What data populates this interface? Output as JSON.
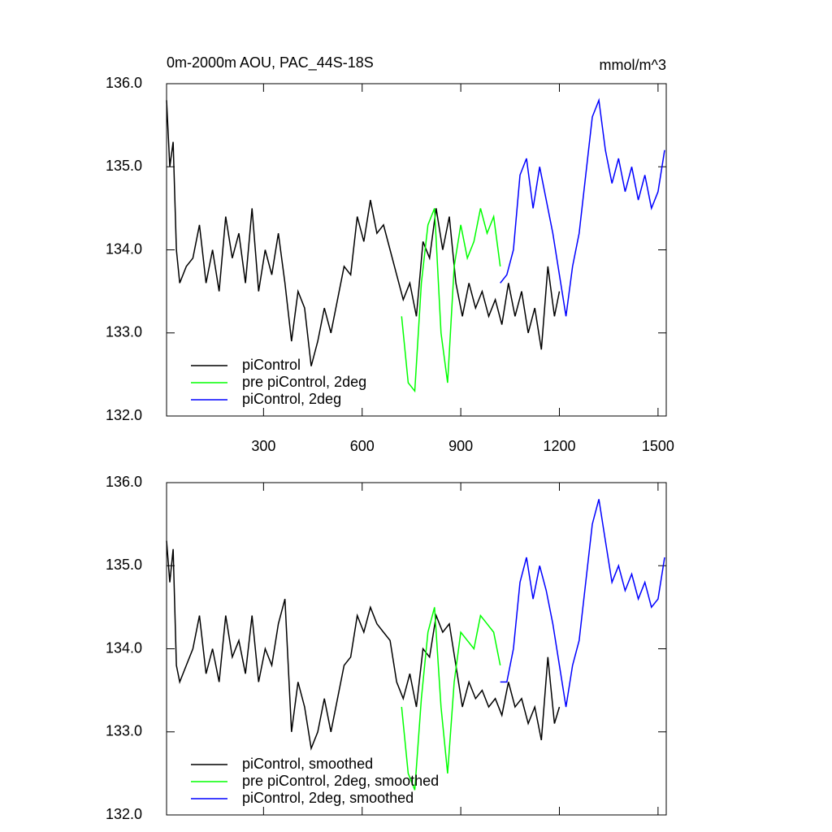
{
  "chart_data": [
    {
      "type": "line",
      "title": "0m-2000m AOU, PAC_44S-18S",
      "units": "mmol/m^3",
      "xlim": [
        5,
        1525
      ],
      "xticks": [
        300,
        600,
        900,
        1200,
        1500
      ],
      "xtick_labels": true,
      "ylim": [
        132,
        136
      ],
      "yticks": [
        {
          "value": 132,
          "label": "132.0"
        },
        {
          "value": 133,
          "label": "133.0"
        },
        {
          "value": 134,
          "label": "134.0"
        },
        {
          "value": 135,
          "label": "135.0"
        },
        {
          "value": 136,
          "label": "136.0"
        }
      ],
      "legend": "lower left",
      "series": [
        {
          "name": "piControl",
          "color": "#000000",
          "x": [
            5,
            15,
            25,
            35,
            45,
            65,
            85,
            105,
            125,
            145,
            165,
            185,
            205,
            225,
            245,
            265,
            285,
            305,
            325,
            345,
            365,
            385,
            405,
            425,
            445,
            465,
            485,
            505,
            525,
            545,
            565,
            585,
            605,
            625,
            645,
            665,
            685,
            705,
            725,
            745,
            765,
            785,
            805,
            825,
            845,
            865,
            885,
            905,
            925,
            945,
            965,
            985,
            1005,
            1025,
            1045,
            1065,
            1085,
            1105,
            1125,
            1145,
            1165,
            1185,
            1200
          ],
          "values": [
            135.8,
            135.0,
            135.3,
            134.0,
            133.6,
            133.8,
            133.9,
            134.3,
            133.6,
            134.0,
            133.5,
            134.4,
            133.9,
            134.2,
            133.6,
            134.5,
            133.5,
            134.0,
            133.7,
            134.2,
            133.6,
            132.9,
            133.5,
            133.3,
            132.6,
            132.9,
            133.3,
            133.0,
            133.4,
            133.8,
            133.7,
            134.4,
            134.1,
            134.6,
            134.2,
            134.3,
            134.0,
            133.7,
            133.4,
            133.6,
            133.2,
            134.1,
            133.9,
            134.5,
            134.0,
            134.4,
            133.6,
            133.2,
            133.6,
            133.3,
            133.5,
            133.2,
            133.4,
            133.1,
            133.6,
            133.2,
            133.5,
            133.0,
            133.3,
            132.8,
            133.8,
            133.2,
            133.5
          ]
        },
        {
          "name": "pre piControl, 2deg",
          "color": "#00ff00",
          "x": [
            720,
            740,
            760,
            780,
            800,
            820,
            840,
            860,
            880,
            900,
            920,
            940,
            960,
            980,
            1000,
            1020
          ],
          "values": [
            133.2,
            132.4,
            132.3,
            133.6,
            134.3,
            134.5,
            133.0,
            132.4,
            133.8,
            134.3,
            133.9,
            134.1,
            134.5,
            134.2,
            134.4,
            133.8
          ]
        },
        {
          "name": "piControl, 2deg",
          "color": "#0000ff",
          "x": [
            1020,
            1040,
            1060,
            1080,
            1100,
            1120,
            1140,
            1160,
            1180,
            1200,
            1220,
            1240,
            1260,
            1280,
            1300,
            1320,
            1340,
            1360,
            1380,
            1400,
            1420,
            1440,
            1460,
            1480,
            1500,
            1520
          ],
          "values": [
            133.6,
            133.7,
            134.0,
            134.9,
            135.1,
            134.5,
            135.0,
            134.6,
            134.2,
            133.7,
            133.2,
            133.8,
            134.2,
            134.9,
            135.6,
            135.8,
            135.2,
            134.8,
            135.1,
            134.7,
            135.0,
            134.6,
            134.9,
            134.5,
            134.7,
            135.2
          ]
        }
      ]
    },
    {
      "type": "line",
      "xlim": [
        5,
        1525
      ],
      "xticks": [
        300,
        600,
        900,
        1200,
        1500
      ],
      "xtick_labels": false,
      "ylim": [
        132,
        136
      ],
      "yticks": [
        {
          "value": 132,
          "label": "132.0"
        },
        {
          "value": 133,
          "label": "133.0"
        },
        {
          "value": 134,
          "label": "134.0"
        },
        {
          "value": 135,
          "label": "135.0"
        },
        {
          "value": 136,
          "label": "136.0"
        }
      ],
      "legend": "lower left",
      "series": [
        {
          "name": "piControl, smoothed",
          "color": "#000000",
          "x": [
            5,
            15,
            25,
            35,
            45,
            65,
            85,
            105,
            125,
            145,
            165,
            185,
            205,
            225,
            245,
            265,
            285,
            305,
            325,
            345,
            365,
            385,
            405,
            425,
            445,
            465,
            485,
            505,
            525,
            545,
            565,
            585,
            605,
            625,
            645,
            665,
            685,
            705,
            725,
            745,
            765,
            785,
            805,
            825,
            845,
            865,
            885,
            905,
            925,
            945,
            965,
            985,
            1005,
            1025,
            1045,
            1065,
            1085,
            1105,
            1125,
            1145,
            1165,
            1185,
            1200
          ],
          "values": [
            135.3,
            134.8,
            135.2,
            133.8,
            133.6,
            133.8,
            134.0,
            134.4,
            133.7,
            134.0,
            133.6,
            134.4,
            133.9,
            134.1,
            133.7,
            134.4,
            133.6,
            134.0,
            133.8,
            134.3,
            134.6,
            133.0,
            133.6,
            133.3,
            132.8,
            133.0,
            133.4,
            133.0,
            133.4,
            133.8,
            133.9,
            134.4,
            134.2,
            134.5,
            134.3,
            134.2,
            134.1,
            133.6,
            133.4,
            133.7,
            133.3,
            134.0,
            133.9,
            134.4,
            134.2,
            134.3,
            133.8,
            133.3,
            133.6,
            133.4,
            133.5,
            133.3,
            133.4,
            133.2,
            133.6,
            133.3,
            133.4,
            133.1,
            133.3,
            132.9,
            133.9,
            133.1,
            133.3
          ]
        },
        {
          "name": "pre piControl, 2deg, smoothed",
          "color": "#00ff00",
          "x": [
            720,
            740,
            760,
            780,
            800,
            820,
            840,
            860,
            880,
            900,
            920,
            940,
            960,
            980,
            1000,
            1020
          ],
          "values": [
            133.3,
            132.5,
            132.3,
            133.4,
            134.2,
            134.5,
            133.3,
            132.5,
            133.6,
            134.2,
            134.1,
            134.0,
            134.4,
            134.3,
            134.2,
            133.8
          ]
        },
        {
          "name": "piControl, 2deg, smoothed",
          "color": "#0000ff",
          "x": [
            1020,
            1040,
            1060,
            1080,
            1100,
            1120,
            1140,
            1160,
            1180,
            1200,
            1220,
            1240,
            1260,
            1280,
            1300,
            1320,
            1340,
            1360,
            1380,
            1400,
            1420,
            1440,
            1460,
            1480,
            1500,
            1520
          ],
          "values": [
            133.6,
            133.6,
            134.0,
            134.8,
            135.1,
            134.6,
            135.0,
            134.7,
            134.3,
            133.8,
            133.3,
            133.8,
            134.1,
            134.8,
            135.5,
            135.8,
            135.3,
            134.8,
            135.0,
            134.7,
            134.9,
            134.6,
            134.8,
            134.5,
            134.6,
            135.1
          ]
        }
      ]
    }
  ]
}
